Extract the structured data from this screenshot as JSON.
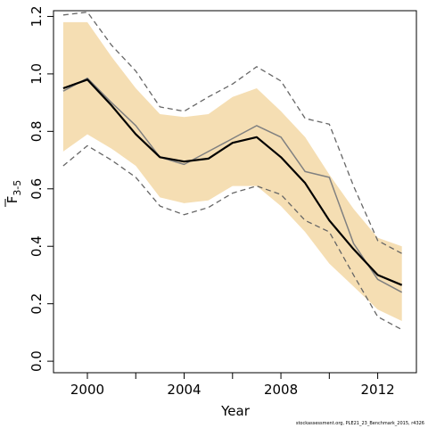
{
  "chart_data": {
    "type": "line",
    "xlabel": "Year",
    "ylabel": "F",
    "ylabel_sub": "3-5",
    "xlim": [
      1998.6,
      2013.6
    ],
    "ylim": [
      -0.04,
      1.22
    ],
    "x_ticks": [
      2000,
      2004,
      2008,
      2012
    ],
    "x_tick_labels": [
      "2000",
      "2004",
      "2008",
      "2012"
    ],
    "x_minor_ticks": [
      2002,
      2006,
      2010
    ],
    "y_ticks": [
      0.0,
      0.2,
      0.4,
      0.6,
      0.8,
      1.0,
      1.2
    ],
    "y_tick_labels": [
      "0.0",
      "0.2",
      "0.4",
      "0.6",
      "0.8",
      "1.0",
      "1.2"
    ],
    "x": [
      1999,
      2000,
      2001,
      2002,
      2003,
      2004,
      2005,
      2006,
      2007,
      2008,
      2009,
      2010,
      2011,
      2012,
      2013
    ],
    "band": {
      "upper": [
        1.18,
        1.18,
        1.06,
        0.95,
        0.86,
        0.85,
        0.86,
        0.92,
        0.95,
        0.87,
        0.78,
        0.65,
        0.53,
        0.43,
        0.4
      ],
      "lower": [
        0.73,
        0.79,
        0.74,
        0.68,
        0.57,
        0.55,
        0.56,
        0.61,
        0.61,
        0.54,
        0.45,
        0.34,
        0.26,
        0.18,
        0.14
      ],
      "color": "#f5deb3"
    },
    "series": [
      {
        "values": [
          0.95,
          0.98,
          0.89,
          0.79,
          0.71,
          0.695,
          0.705,
          0.76,
          0.78,
          0.71,
          0.62,
          0.49,
          0.39,
          0.3,
          0.265
        ],
        "color": "#000000",
        "style": "solid",
        "width": 2.2
      },
      {
        "values": [
          0.94,
          0.985,
          0.9,
          0.82,
          0.71,
          0.685,
          0.73,
          0.775,
          0.82,
          0.78,
          0.66,
          0.64,
          0.41,
          0.285,
          0.24
        ],
        "color": "#808080",
        "style": "solid",
        "width": 1.5
      },
      {
        "values": [
          1.205,
          1.215,
          1.1,
          1.01,
          0.885,
          0.87,
          0.92,
          0.965,
          1.025,
          0.975,
          0.845,
          0.825,
          0.61,
          0.42,
          0.375
        ],
        "color": "#666666",
        "style": "dashed",
        "width": 1.3
      },
      {
        "values": [
          0.68,
          0.75,
          0.7,
          0.64,
          0.54,
          0.51,
          0.535,
          0.585,
          0.61,
          0.58,
          0.49,
          0.45,
          0.3,
          0.155,
          0.11
        ],
        "color": "#666666",
        "style": "dashed",
        "width": 1.3
      }
    ]
  },
  "footnote": "stockassessment.org, PLE21_23_Benchmark_2015, r4326"
}
